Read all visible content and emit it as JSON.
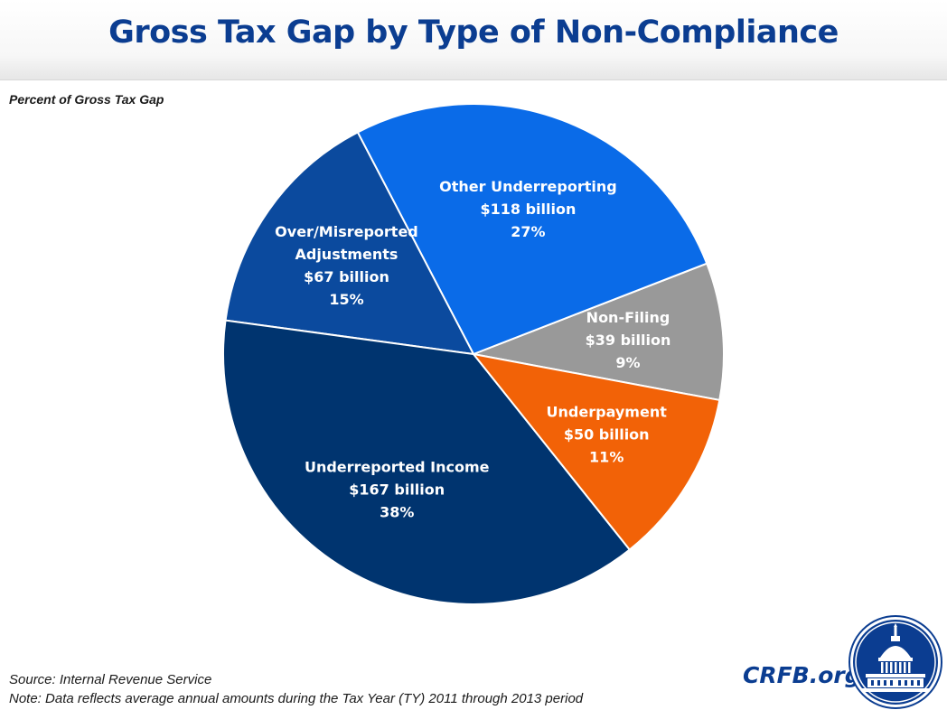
{
  "header": {
    "title": "Gross Tax Gap by Type of Non-Compliance"
  },
  "subtitle": "Percent of Gross Tax Gap",
  "chart_data": {
    "type": "pie",
    "title": "Gross Tax Gap by Type of Non-Compliance",
    "subtitle": "Percent of Gross Tax Gap",
    "slices": [
      {
        "name": "Non-Filing",
        "amount_billion": 39,
        "amount_label": "$39 billion",
        "percent": 9,
        "percent_label": "9%",
        "color": "#999999"
      },
      {
        "name": "Other Underreporting",
        "amount_billion": 118,
        "amount_label": "$118 billion",
        "percent": 27,
        "percent_label": "27%",
        "color": "#0a6be8"
      },
      {
        "name": "Over/Misreported Adjustments",
        "name_lines": [
          "Over/Misreported",
          "Adjustments"
        ],
        "amount_billion": 67,
        "amount_label": "$67 billion",
        "percent": 15,
        "percent_label": "15%",
        "color": "#0b4a9e"
      },
      {
        "name": "Underreported Income",
        "amount_billion": 167,
        "amount_label": "$167 billion",
        "percent": 38,
        "percent_label": "38%",
        "color": "#00346f"
      },
      {
        "name": "Underpayment",
        "amount_billion": 50,
        "amount_label": "$50 billion",
        "percent": 11,
        "percent_label": "11%",
        "color": "#f26207"
      }
    ]
  },
  "footer": {
    "source": "Source: Internal Revenue Service",
    "note": "Note: Data reflects average annual amounts during the Tax Year (TY) 2011 through 2013 period",
    "brand": "CRFB.org"
  },
  "colors": {
    "title": "#0b3d91",
    "brand": "#0b3d91",
    "logo_bg": "#0b3d91"
  }
}
